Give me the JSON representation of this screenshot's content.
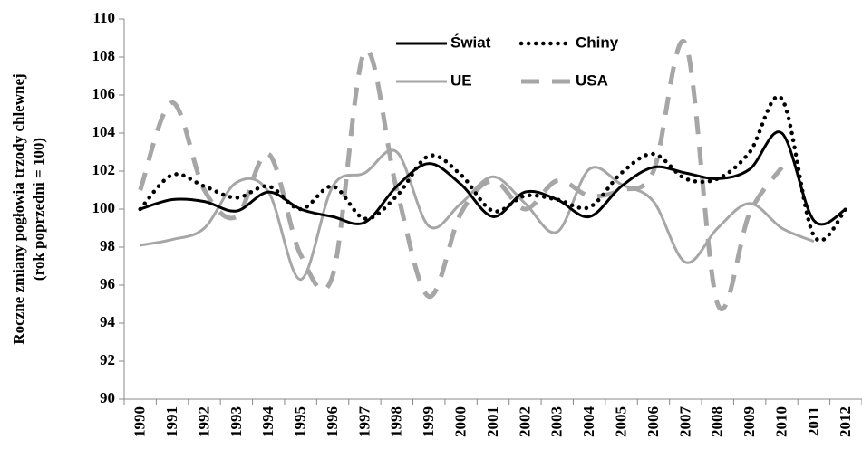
{
  "chart_data": {
    "type": "line",
    "smooth": true,
    "y_label": [
      "Roczne zmiany pogłowia trzody chlewnej",
      "(rok poprzedni = 100)"
    ],
    "categories": [
      "1990",
      "1991",
      "1992",
      "1993",
      "1994",
      "1995",
      "1996",
      "1997",
      "1998",
      "1999",
      "2000",
      "2001",
      "2002",
      "2003",
      "2004",
      "2005",
      "2006",
      "2007",
      "2008",
      "2009",
      "2010",
      "2011",
      "2012"
    ],
    "ylim": [
      90,
      110
    ],
    "yticks": [
      90,
      92,
      94,
      96,
      98,
      100,
      102,
      104,
      106,
      108,
      110
    ],
    "grid": false,
    "legend": "top",
    "series": [
      {
        "name": "Świat",
        "color": "#000000",
        "dash": "solid",
        "values": [
          100,
          100.5,
          100.4,
          99.9,
          100.9,
          100.0,
          99.6,
          99.3,
          101.2,
          102.4,
          101.3,
          99.6,
          100.9,
          100.5,
          99.6,
          101.2,
          102.2,
          101.9,
          101.6,
          102.1,
          104.0,
          99.4,
          100.0
        ]
      },
      {
        "name": "Chiny",
        "color": "#000000",
        "dash": "dotted",
        "values": [
          100,
          101.8,
          101.2,
          100.6,
          101.2,
          100.0,
          101.2,
          99.5,
          100.7,
          102.8,
          101.8,
          99.9,
          100.7,
          100.5,
          100.1,
          101.9,
          102.9,
          101.6,
          101.6,
          103.0,
          105.8,
          98.6,
          100.0
        ]
      },
      {
        "name": "UE",
        "color": "#a6a6a6",
        "dash": "solid",
        "values": [
          98.1,
          98.4,
          99.0,
          101.4,
          100.9,
          96.3,
          101.2,
          101.9,
          103.0,
          99.1,
          100.3,
          101.7,
          100.3,
          98.8,
          102.1,
          101.3,
          100.4,
          97.2,
          99.0,
          100.3,
          99.0,
          98.3,
          null
        ]
      },
      {
        "name": "USA",
        "color": "#a6a6a6",
        "dash": "dashed",
        "values": [
          101.0,
          105.6,
          101.0,
          99.6,
          102.9,
          97.6,
          96.5,
          108.3,
          101.0,
          95.4,
          99.8,
          101.5,
          100.0,
          101.5,
          100.7,
          101.0,
          102.0,
          108.7,
          95.0,
          99.8,
          102.2,
          null,
          null
        ]
      }
    ]
  }
}
